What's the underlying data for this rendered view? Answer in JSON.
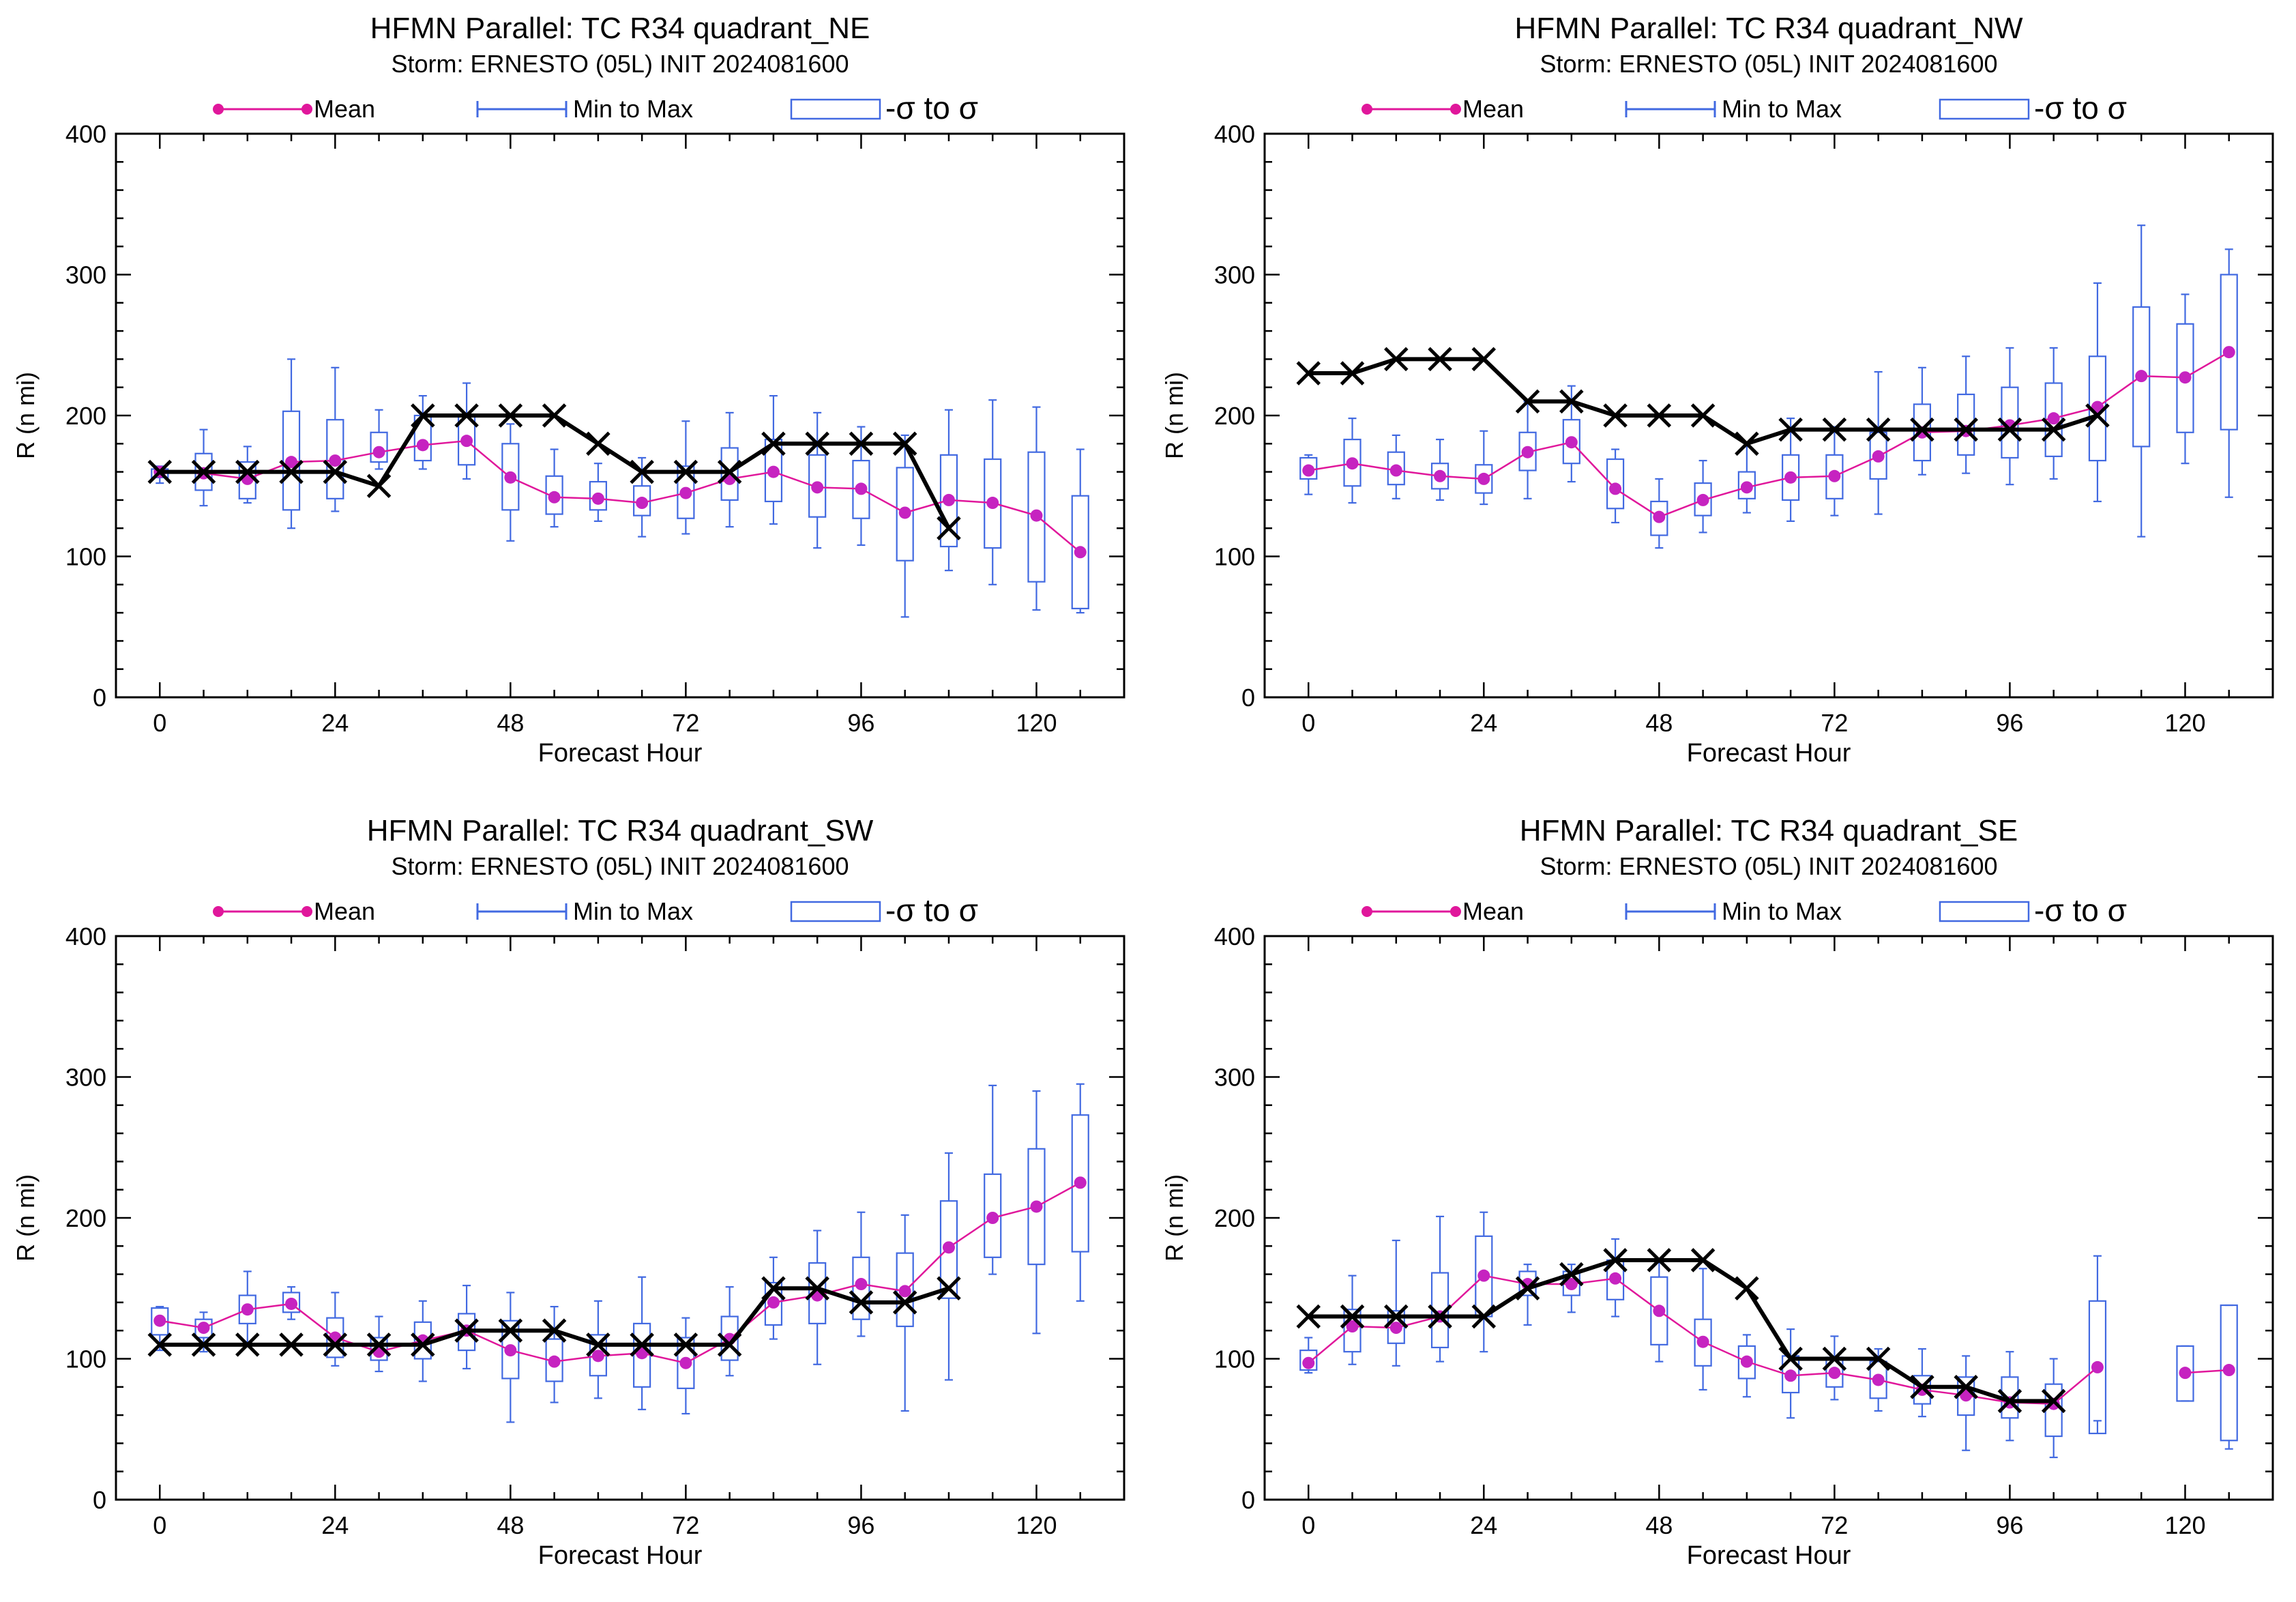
{
  "colors": {
    "mean": "#e0179b",
    "mean_marker": "#c623c0",
    "range": "#4169e1",
    "box": "#4169e1",
    "obs": "#000000"
  },
  "legend": {
    "mean": "Mean",
    "range": "Min to Max",
    "sigma": "-σ to σ"
  },
  "chart_data": [
    {
      "type": "box",
      "title": "HFMN Parallel: TC  R34 quadrant_NE",
      "subtitle": "Storm: ERNESTO (05L) INIT 2024081600",
      "xlabel": "Forecast Hour",
      "ylabel": "R (n mi)",
      "xlim": [
        -6,
        132
      ],
      "ylim": [
        0,
        400
      ],
      "xticks": [
        0,
        24,
        48,
        72,
        96,
        120
      ],
      "yticks": [
        0,
        100,
        200,
        300,
        400
      ],
      "hours": [
        0,
        6,
        12,
        18,
        24,
        30,
        36,
        42,
        48,
        54,
        60,
        66,
        72,
        78,
        84,
        90,
        96,
        102,
        108,
        114,
        120,
        126
      ],
      "mean": [
        160,
        159,
        155,
        167,
        168,
        174,
        179,
        182,
        156,
        142,
        141,
        138,
        145,
        155,
        160,
        149,
        148,
        131,
        140,
        138,
        129,
        103
      ],
      "min": [
        152,
        136,
        138,
        120,
        132,
        162,
        162,
        155,
        111,
        121,
        125,
        114,
        116,
        121,
        123,
        106,
        108,
        57,
        90,
        80,
        62,
        60
      ],
      "max": [
        164,
        190,
        178,
        240,
        234,
        204,
        214,
        223,
        194,
        176,
        166,
        170,
        196,
        202,
        214,
        202,
        192,
        186,
        204,
        211,
        206,
        176
      ],
      "sd_low": [
        156,
        147,
        141,
        133,
        141,
        167,
        168,
        165,
        133,
        130,
        133,
        129,
        127,
        140,
        139,
        128,
        127,
        97,
        107,
        106,
        82,
        63
      ],
      "sd_high": [
        162,
        173,
        167,
        203,
        197,
        188,
        200,
        200,
        180,
        157,
        153,
        150,
        164,
        177,
        183,
        172,
        168,
        163,
        172,
        169,
        174,
        143
      ],
      "obs_hours": [
        0,
        6,
        12,
        18,
        24,
        30,
        36,
        42,
        48,
        54,
        60,
        66,
        72,
        78,
        84,
        90,
        96,
        102,
        108
      ],
      "obs": [
        160,
        160,
        160,
        160,
        160,
        150,
        200,
        200,
        200,
        200,
        180,
        160,
        160,
        160,
        180,
        180,
        180,
        180,
        120
      ]
    },
    {
      "type": "box",
      "title": "HFMN Parallel: TC  R34 quadrant_NW",
      "subtitle": "Storm: ERNESTO (05L) INIT 2024081600",
      "xlabel": "Forecast Hour",
      "ylabel": "R (n mi)",
      "xlim": [
        -6,
        132
      ],
      "ylim": [
        0,
        400
      ],
      "xticks": [
        0,
        24,
        48,
        72,
        96,
        120
      ],
      "yticks": [
        0,
        100,
        200,
        300,
        400
      ],
      "hours": [
        0,
        6,
        12,
        18,
        24,
        30,
        36,
        42,
        48,
        54,
        60,
        66,
        72,
        78,
        84,
        90,
        96,
        102,
        108,
        114,
        120,
        126
      ],
      "mean": [
        161,
        166,
        161,
        157,
        155,
        174,
        181,
        148,
        128,
        140,
        149,
        156,
        157,
        171,
        188,
        189,
        193,
        198,
        206,
        228,
        227,
        245
      ],
      "min": [
        144,
        138,
        141,
        140,
        137,
        141,
        153,
        124,
        106,
        117,
        131,
        125,
        129,
        130,
        158,
        159,
        151,
        155,
        139,
        114,
        166,
        142
      ],
      "max": [
        172,
        198,
        186,
        183,
        189,
        210,
        221,
        176,
        155,
        168,
        178,
        198,
        192,
        231,
        234,
        242,
        248,
        248,
        294,
        335,
        286,
        318
      ],
      "sd_low": [
        155,
        150,
        151,
        148,
        145,
        161,
        166,
        134,
        115,
        129,
        141,
        140,
        141,
        155,
        168,
        172,
        170,
        171,
        168,
        178,
        188,
        190
      ],
      "sd_high": [
        170,
        183,
        174,
        166,
        165,
        188,
        197,
        169,
        139,
        152,
        160,
        172,
        172,
        188,
        208,
        215,
        220,
        223,
        242,
        277,
        265,
        300
      ],
      "obs_hours": [
        0,
        6,
        12,
        18,
        24,
        30,
        36,
        42,
        48,
        54,
        60,
        66,
        72,
        78,
        84,
        90,
        96,
        102,
        108
      ],
      "obs": [
        230,
        230,
        240,
        240,
        240,
        210,
        210,
        200,
        200,
        200,
        180,
        190,
        190,
        190,
        190,
        190,
        190,
        190,
        200
      ]
    },
    {
      "type": "box",
      "title": "HFMN Parallel: TC  R34 quadrant_SW",
      "subtitle": "Storm: ERNESTO (05L) INIT 2024081600",
      "xlabel": "Forecast Hour",
      "ylabel": "R (n mi)",
      "xlim": [
        -6,
        132
      ],
      "ylim": [
        0,
        400
      ],
      "xticks": [
        0,
        24,
        48,
        72,
        96,
        120
      ],
      "yticks": [
        0,
        100,
        200,
        300,
        400
      ],
      "hours": [
        0,
        6,
        12,
        18,
        24,
        30,
        36,
        42,
        48,
        54,
        60,
        66,
        72,
        78,
        84,
        90,
        96,
        102,
        108,
        114,
        120,
        126
      ],
      "mean": [
        127,
        122,
        135,
        139,
        115,
        105,
        113,
        120,
        106,
        98,
        102,
        104,
        97,
        114,
        140,
        145,
        153,
        148,
        179,
        200,
        208,
        225
      ],
      "min": [
        106,
        105,
        112,
        128,
        95,
        91,
        84,
        93,
        55,
        69,
        72,
        64,
        61,
        88,
        114,
        96,
        116,
        63,
        85,
        160,
        118,
        141
      ],
      "max": [
        137,
        133,
        162,
        151,
        147,
        130,
        141,
        152,
        147,
        137,
        141,
        158,
        129,
        151,
        172,
        191,
        204,
        202,
        246,
        294,
        290,
        295
      ],
      "sd_low": [
        117,
        115,
        125,
        133,
        101,
        99,
        100,
        106,
        86,
        84,
        88,
        80,
        79,
        99,
        124,
        125,
        128,
        123,
        143,
        172,
        167,
        176
      ],
      "sd_high": [
        136,
        128,
        145,
        147,
        129,
        115,
        126,
        132,
        127,
        114,
        117,
        125,
        115,
        130,
        154,
        168,
        172,
        175,
        212,
        231,
        249,
        273
      ],
      "obs_hours": [
        0,
        6,
        12,
        18,
        24,
        30,
        36,
        42,
        48,
        54,
        60,
        66,
        72,
        78,
        84,
        90,
        96,
        102,
        108
      ],
      "obs": [
        110,
        110,
        110,
        110,
        110,
        110,
        110,
        120,
        120,
        120,
        110,
        110,
        110,
        110,
        150,
        150,
        140,
        140,
        150
      ]
    },
    {
      "type": "box",
      "title": "HFMN Parallel: TC  R34 quadrant_SE",
      "subtitle": "Storm: ERNESTO (05L) INIT 2024081600",
      "xlabel": "Forecast Hour",
      "ylabel": "R (n mi)",
      "xlim": [
        -6,
        132
      ],
      "ylim": [
        0,
        400
      ],
      "xticks": [
        0,
        24,
        48,
        72,
        96,
        120
      ],
      "yticks": [
        0,
        100,
        200,
        300,
        400
      ],
      "hours": [
        0,
        6,
        12,
        18,
        24,
        30,
        36,
        42,
        48,
        54,
        60,
        66,
        72,
        78,
        84,
        90,
        96,
        102,
        108,
        114,
        120,
        126
      ],
      "mean": [
        97,
        123,
        122,
        130,
        159,
        153,
        153,
        157,
        134,
        112,
        98,
        88,
        90,
        85,
        78,
        74,
        69,
        68,
        94,
        null,
        90,
        92
      ],
      "min": [
        90,
        96,
        95,
        98,
        105,
        124,
        133,
        130,
        98,
        78,
        73,
        58,
        71,
        63,
        59,
        35,
        42,
        30,
        56,
        null,
        70,
        36
      ],
      "max": [
        115,
        159,
        184,
        201,
        204,
        167,
        167,
        185,
        169,
        164,
        117,
        121,
        116,
        107,
        107,
        102,
        105,
        100,
        173,
        null,
        109,
        138
      ],
      "sd_low": [
        92,
        105,
        111,
        108,
        130,
        145,
        145,
        142,
        110,
        95,
        86,
        76,
        80,
        72,
        68,
        60,
        58,
        45,
        47,
        null,
        70,
        42
      ],
      "sd_high": [
        106,
        135,
        134,
        161,
        187,
        162,
        162,
        170,
        158,
        128,
        109,
        102,
        101,
        98,
        88,
        87,
        87,
        82,
        141,
        null,
        109,
        138
      ],
      "obs_hours": [
        0,
        6,
        12,
        18,
        24,
        30,
        36,
        42,
        48,
        54,
        60,
        66,
        72,
        78,
        84,
        90,
        96,
        102
      ],
      "obs": [
        130,
        130,
        130,
        130,
        130,
        150,
        160,
        170,
        170,
        170,
        150,
        100,
        100,
        100,
        80,
        80,
        70,
        70
      ]
    }
  ]
}
